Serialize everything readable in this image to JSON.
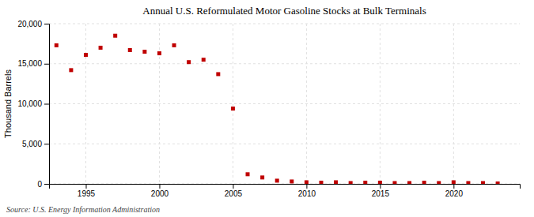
{
  "chart_data": {
    "type": "scatter",
    "title": "Annual U.S. Reformulated Motor Gasoline Stocks at Bulk Terminals",
    "ylabel": "Thousand Barrels",
    "source": "Source: U.S. Energy Information Administration",
    "x": [
      1993,
      1994,
      1995,
      1996,
      1997,
      1998,
      1999,
      2000,
      2001,
      2002,
      2003,
      2004,
      2005,
      2006,
      2007,
      2008,
      2009,
      2010,
      2011,
      2012,
      2013,
      2014,
      2015,
      2016,
      2017,
      2018,
      2019,
      2020,
      2021,
      2022,
      2023
    ],
    "values": [
      17300,
      14200,
      16100,
      17000,
      18500,
      16700,
      16500,
      16300,
      17300,
      15200,
      15500,
      13700,
      9400,
      1200,
      800,
      400,
      300,
      200,
      150,
      200,
      100,
      150,
      150,
      100,
      100,
      150,
      100,
      200,
      100,
      100,
      50
    ],
    "color": "#c00000",
    "marker": "square",
    "xlim": [
      1992.5,
      2024.5
    ],
    "ylim": [
      0,
      20000
    ],
    "xticks": [
      1995,
      2000,
      2005,
      2010,
      2015,
      2020
    ],
    "yticks": [
      0,
      {
        "value": 5000,
        "label": "5,000"
      },
      {
        "value": 10000,
        "label": "10,000"
      },
      {
        "value": 15000,
        "label": "15,000"
      },
      {
        "value": 20000,
        "label": "20,000"
      }
    ],
    "grid": true
  }
}
